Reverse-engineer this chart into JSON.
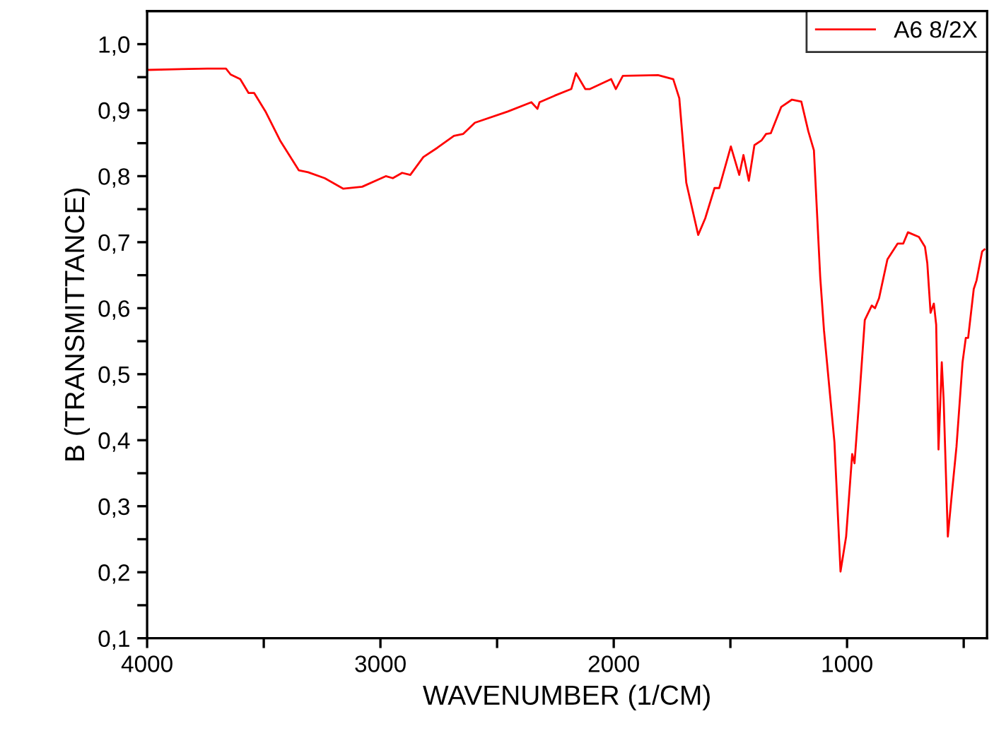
{
  "chart_data": {
    "type": "line",
    "xlabel": "WAVENUMBER (1/CM)",
    "ylabel": "B (TRANSMITTANCE)",
    "xlim": [
      4000,
      400
    ],
    "ylim": [
      0.1,
      1.05
    ],
    "xticks": [
      4000,
      {
        "value": 3500,
        "label": null
      },
      3000,
      {
        "value": 2500,
        "label": null
      },
      2000,
      {
        "value": 1500,
        "label": null
      },
      1000,
      {
        "value": 500,
        "label": null
      }
    ],
    "yticks": [
      {
        "value": 0.1,
        "label": "0,1"
      },
      {
        "value": 0.15,
        "label": null
      },
      {
        "value": 0.2,
        "label": "0,2"
      },
      {
        "value": 0.25,
        "label": null
      },
      {
        "value": 0.3,
        "label": "0,3"
      },
      {
        "value": 0.35,
        "label": null
      },
      {
        "value": 0.4,
        "label": "0,4"
      },
      {
        "value": 0.45,
        "label": null
      },
      {
        "value": 0.5,
        "label": "0,5"
      },
      {
        "value": 0.55,
        "label": null
      },
      {
        "value": 0.6,
        "label": "0,6"
      },
      {
        "value": 0.65,
        "label": null
      },
      {
        "value": 0.7,
        "label": "0,7"
      },
      {
        "value": 0.75,
        "label": null
      },
      {
        "value": 0.8,
        "label": "0,8"
      },
      {
        "value": 0.85,
        "label": null
      },
      {
        "value": 0.9,
        "label": "0,9"
      },
      {
        "value": 0.95,
        "label": null
      },
      {
        "value": 1.0,
        "label": "1,0"
      }
    ],
    "grid": false,
    "legend": "top right",
    "marker": "none",
    "line_style": "solid",
    "series": [
      {
        "name": "A6 8/2X",
        "color": "#ff0000",
        "x": [
          3995,
          3742,
          3662,
          3642,
          3601,
          3565,
          3541,
          3491,
          3430,
          3350,
          3310,
          3239,
          3159,
          3078,
          2977,
          2947,
          2907,
          2872,
          2816,
          2756,
          2685,
          2645,
          2595,
          2454,
          2353,
          2327,
          2318,
          2253,
          2182,
          2162,
          2122,
          2102,
          2011,
          1991,
          1961,
          1810,
          1745,
          1719,
          1689,
          1638,
          1608,
          1568,
          1548,
          1498,
          1462,
          1444,
          1421,
          1397,
          1367,
          1347,
          1327,
          1282,
          1236,
          1196,
          1166,
          1142,
          1115,
          1099,
          1054,
          1028,
          1004,
          978,
          968,
          948,
          924,
          894,
          880,
          863,
          827,
          783,
          759,
          739,
          692,
          666,
          656,
          642,
          628,
          618,
          608,
          594,
          586,
          568,
          551,
          531,
          505,
          491,
          481,
          457,
          445,
          421,
          411
        ],
        "values": [
          0.961,
          0.963,
          0.963,
          0.954,
          0.947,
          0.926,
          0.926,
          0.897,
          0.854,
          0.809,
          0.806,
          0.797,
          0.781,
          0.784,
          0.8,
          0.797,
          0.805,
          0.802,
          0.829,
          0.843,
          0.861,
          0.864,
          0.881,
          0.898,
          0.912,
          0.902,
          0.912,
          0.922,
          0.932,
          0.956,
          0.932,
          0.932,
          0.947,
          0.932,
          0.952,
          0.953,
          0.947,
          0.918,
          0.79,
          0.711,
          0.736,
          0.782,
          0.782,
          0.845,
          0.802,
          0.832,
          0.793,
          0.847,
          0.854,
          0.864,
          0.865,
          0.905,
          0.916,
          0.913,
          0.868,
          0.839,
          0.647,
          0.567,
          0.397,
          0.201,
          0.254,
          0.379,
          0.365,
          0.461,
          0.582,
          0.604,
          0.6,
          0.615,
          0.674,
          0.698,
          0.698,
          0.715,
          0.708,
          0.693,
          0.668,
          0.593,
          0.607,
          0.575,
          0.386,
          0.518,
          0.461,
          0.254,
          0.318,
          0.39,
          0.518,
          0.555,
          0.555,
          0.629,
          0.642,
          0.686,
          0.689
        ]
      }
    ]
  }
}
